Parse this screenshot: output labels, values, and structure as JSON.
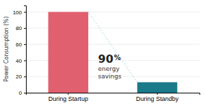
{
  "chart_data": {
    "type": "bar",
    "categories": [
      "During Startup",
      "During Standby"
    ],
    "values": [
      100,
      13
    ],
    "colors": [
      "#e06070",
      "#1a7a8a"
    ],
    "ylabel": "Power Consumption (%)",
    "ylim": [
      0,
      108
    ],
    "yticks": [
      0,
      20,
      40,
      60,
      80,
      100
    ],
    "annotations": [
      "90",
      "%",
      "energy",
      "savings"
    ],
    "grid": true
  }
}
